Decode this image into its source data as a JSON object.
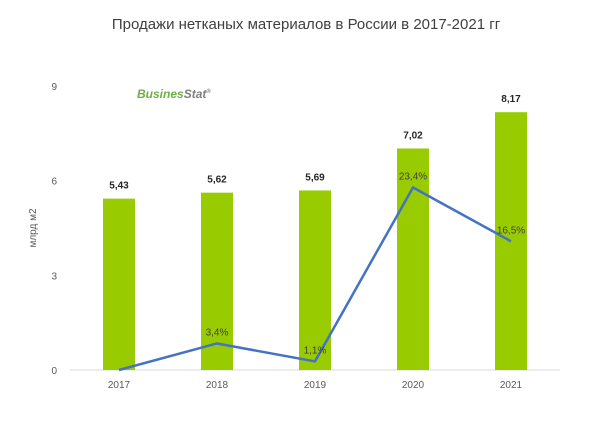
{
  "chart_data": {
    "type": "bar",
    "title": "Продажи нетканых материалов в России в 2017-2021 гг",
    "ylabel": "млрд м2",
    "categories": [
      "2017",
      "2018",
      "2019",
      "2020",
      "2021"
    ],
    "ylim": [
      0,
      9
    ],
    "yticks": [
      "0",
      "3",
      "6",
      "9"
    ],
    "grid": false,
    "series": [
      {
        "type": "bar",
        "values": [
          5.43,
          5.62,
          5.69,
          7.02,
          8.17
        ],
        "labels": [
          "5,43",
          "5,62",
          "5,69",
          "7,02",
          "8,17"
        ],
        "color": "#99cc00"
      },
      {
        "type": "line",
        "values": [
          0,
          3.4,
          1.1,
          23.4,
          16.5
        ],
        "labels": [
          "",
          "3,4%",
          "1,1%",
          "23,4%",
          "16,5%"
        ],
        "color": "#4472c4",
        "secondary_axis_range": [
          0,
          30
        ]
      }
    ]
  },
  "logo": {
    "part1": "Busines",
    "part2": "Stat",
    "mark": "®",
    "color1": "#70ad47",
    "color2": "#7f7f7f"
  }
}
